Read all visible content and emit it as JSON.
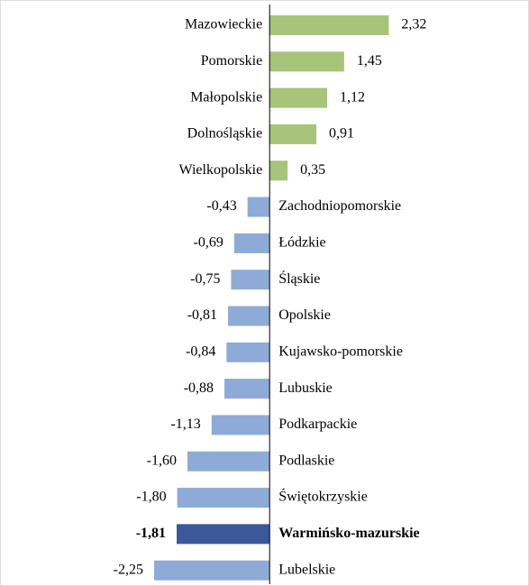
{
  "chart_data": {
    "type": "bar",
    "orientation": "horizontal",
    "categories": [
      "Mazowieckie",
      "Pomorskie",
      "Małopolskie",
      "Dolnośląskie",
      "Wielkopolskie",
      "Zachodniopomorskie",
      "Łódzkie",
      "Śląskie",
      "Opolskie",
      "Kujawsko-pomorskie",
      "Lubuskie",
      "Podkarpackie",
      "Podlaskie",
      "Świętokrzyskie",
      "Warmińsko-mazurskie",
      "Lubelskie"
    ],
    "values": [
      2.32,
      1.45,
      1.12,
      0.91,
      0.35,
      -0.43,
      -0.69,
      -0.75,
      -0.81,
      -0.84,
      -0.88,
      -1.13,
      -1.6,
      -1.8,
      -1.81,
      -2.25
    ],
    "value_labels": [
      "2,32",
      "1,45",
      "1,12",
      "0,91",
      "0,35",
      "-0,43",
      "-0,69",
      "-0,75",
      "-0,81",
      "-0,84",
      "-0,88",
      "-1,13",
      "-1,60",
      "-1,80",
      "-1,81",
      "-2,25"
    ],
    "colors": [
      "#a6c47a",
      "#a6c47a",
      "#a6c47a",
      "#a6c47a",
      "#a6c47a",
      "#8eaad6",
      "#8eaad6",
      "#8eaad6",
      "#8eaad6",
      "#8eaad6",
      "#8eaad6",
      "#8eaad6",
      "#8eaad6",
      "#8eaad6",
      "#3b5899",
      "#8eaad6"
    ],
    "bold": [
      false,
      false,
      false,
      false,
      false,
      false,
      false,
      false,
      false,
      false,
      false,
      false,
      false,
      false,
      true,
      false
    ],
    "xlim": [
      -5.25,
      5.05
    ]
  }
}
